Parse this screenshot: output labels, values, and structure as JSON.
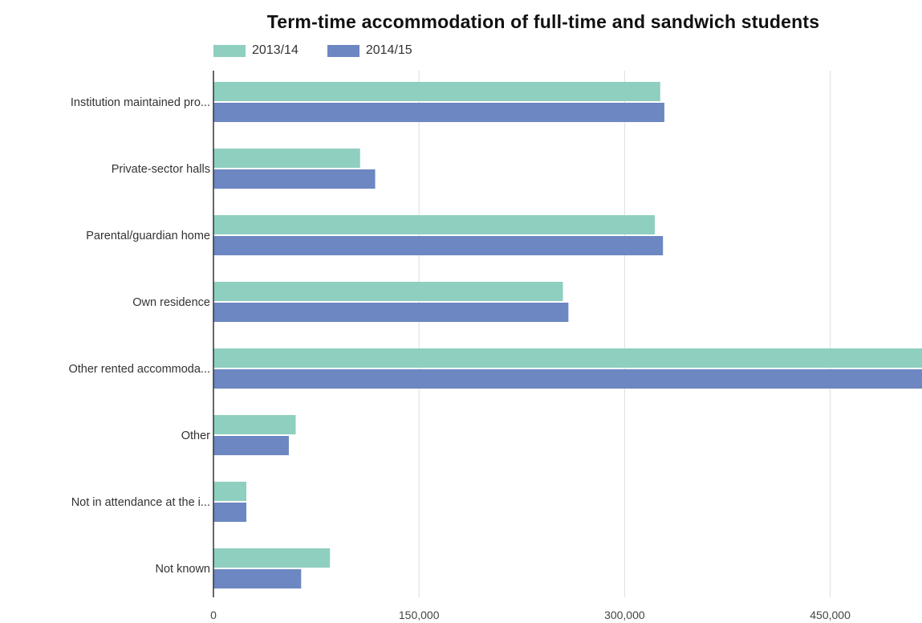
{
  "chart_data": {
    "type": "bar",
    "orientation": "horizontal",
    "title": "Term-time accommodation of full-time and sandwich students",
    "categories": [
      "Institution maintained pro...",
      "Private-sector halls",
      "Parental/guardian home",
      "Own residence",
      "Other rented accommoda...",
      "Other",
      "Not in attendance at the i...",
      "Not known"
    ],
    "series": [
      {
        "name": "2013/14",
        "color": "#8ecfc0",
        "values": [
          326000,
          107000,
          322000,
          255000,
          520000,
          60000,
          24000,
          85000
        ]
      },
      {
        "name": "2014/15",
        "color": "#6c87c1",
        "values": [
          329000,
          118000,
          328000,
          259000,
          525000,
          55000,
          24000,
          64000
        ]
      }
    ],
    "xlim": [
      0,
      517000
    ],
    "xticks": [
      0,
      150000,
      300000,
      450000
    ],
    "xtick_labels": [
      "0",
      "150,000",
      "300,000",
      "450,000"
    ],
    "grid": true,
    "legend_position": "top-left"
  }
}
